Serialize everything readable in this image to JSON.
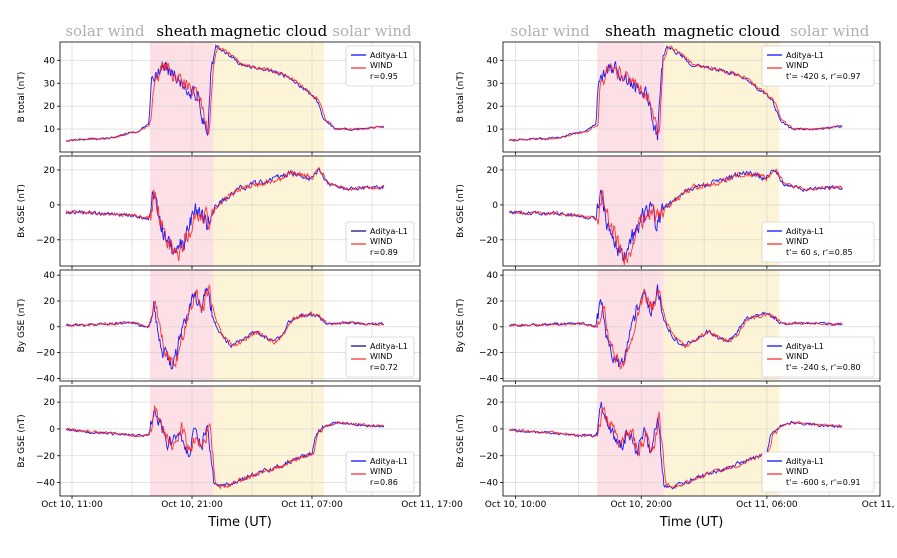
{
  "chart_data": [
    {
      "type": "line",
      "side": "left",
      "regions": [
        {
          "label": "solar wind",
          "color": "#b0b0b0",
          "fill": "none"
        },
        {
          "label": "sheath",
          "color": "#000000",
          "fill": "#fde0e6",
          "x_start": 17.5,
          "x_end": 22.8
        },
        {
          "label": "magnetic cloud",
          "color": "#000000",
          "fill": "#fdf4d8",
          "x_start": 22.8,
          "x_end": 32.0
        },
        {
          "label": "solar wind",
          "color": "#b0b0b0",
          "fill": "none"
        }
      ],
      "x_range": [
        10.0,
        40.0
      ],
      "x_ticks": [
        {
          "v": 11,
          "label": "Oct 10, 11:00"
        },
        {
          "v": 21,
          "label": "Oct 10, 21:00"
        },
        {
          "v": 31,
          "label": "Oct 11, 07:00"
        },
        {
          "v": 41,
          "label": "Oct 11, 17:00"
        }
      ],
      "xlabel": "Time (UT)",
      "panels": [
        {
          "ylabel": "B total (nT)",
          "ylim": [
            0,
            48
          ],
          "yticks": [
            10,
            20,
            30,
            40
          ],
          "key": "bt",
          "legend": {
            "series1": "Aditya-L1",
            "series2": "WIND",
            "stat": "r=0.95",
            "line1_color": "#0000ff"
          }
        },
        {
          "ylabel": "Bx GSE (nT)",
          "ylim": [
            -35,
            28
          ],
          "yticks": [
            -20,
            0,
            20
          ],
          "key": "bx",
          "legend": {
            "series1": "Aditya-L1",
            "series2": "WIND",
            "stat": "r=0.89",
            "line1_color": "#000080"
          }
        },
        {
          "ylabel": "By GSE (nT)",
          "ylim": [
            -42,
            44
          ],
          "yticks": [
            -40,
            -20,
            0,
            20,
            40
          ],
          "key": "by",
          "legend": {
            "series1": "Aditya-L1",
            "series2": "WIND",
            "stat": "r=0.72",
            "line1_color": "#000080"
          }
        },
        {
          "ylabel": "Bz GSE (nT)",
          "ylim": [
            -50,
            32
          ],
          "yticks": [
            -40,
            -20,
            0,
            20
          ],
          "key": "bz",
          "legend": {
            "series1": "Aditya-L1",
            "series2": "WIND",
            "stat": "r=0.86",
            "line1_color": "#0000ff"
          }
        }
      ]
    },
    {
      "type": "line",
      "side": "right",
      "regions": [
        {
          "label": "solar wind",
          "color": "#b0b0b0",
          "fill": "none"
        },
        {
          "label": "sheath",
          "color": "#000000",
          "fill": "#fde0e6",
          "x_start": 16.5,
          "x_end": 21.8
        },
        {
          "label": "magnetic cloud",
          "color": "#000000",
          "fill": "#fdf4d8",
          "x_start": 21.8,
          "x_end": 31.0
        },
        {
          "label": "solar wind",
          "color": "#b0b0b0",
          "fill": "none"
        }
      ],
      "x_range": [
        9.0,
        39.0
      ],
      "x_ticks": [
        {
          "v": 10,
          "label": "Oct 10, 10:00"
        },
        {
          "v": 20,
          "label": "Oct 10, 20:00"
        },
        {
          "v": 30,
          "label": "Oct 11, 06:00"
        },
        {
          "v": 40,
          "label": "Oct 11, 16:00"
        }
      ],
      "xlabel": "Time (UT)",
      "panels": [
        {
          "ylabel": "B total (nT)",
          "ylim": [
            0,
            48
          ],
          "yticks": [
            10,
            20,
            30,
            40
          ],
          "key": "bt",
          "legend": {
            "series1": "Aditya-L1",
            "series2": "WIND",
            "stat": "t'= -420 s, r'=0.97",
            "line1_color": "#0000ff"
          }
        },
        {
          "ylabel": "Bx GSE (nT)",
          "ylim": [
            -35,
            28
          ],
          "yticks": [
            -20,
            0,
            20
          ],
          "key": "bx",
          "legend": {
            "series1": "Aditya-L1",
            "series2": "WIND",
            "stat": "t'= 60 s, r'=0.85",
            "line1_color": "#0000ff"
          }
        },
        {
          "ylabel": "By GSE (nT)",
          "ylim": [
            -42,
            44
          ],
          "yticks": [
            -40,
            -20,
            0,
            20,
            40
          ],
          "key": "by",
          "legend": {
            "series1": "Aditya-L1",
            "series2": "WIND",
            "stat": "t'= -240 s, r'=0.80",
            "line1_color": "#0000ff"
          }
        },
        {
          "ylabel": "Bz GSE (nT)",
          "ylim": [
            -50,
            32
          ],
          "yticks": [
            -40,
            -20,
            0,
            20
          ],
          "key": "bz",
          "legend": {
            "series1": "Aditya-L1",
            "series2": "WIND",
            "stat": "t'= -600 s, r'=0.91",
            "line1_color": "#0000ff"
          }
        }
      ]
    }
  ],
  "profiles": {
    "bt": [
      [
        10.0,
        5
      ],
      [
        14.0,
        6
      ],
      [
        16.5,
        9
      ],
      [
        17.4,
        12
      ],
      [
        17.6,
        30
      ],
      [
        18.5,
        38
      ],
      [
        19.5,
        33
      ],
      [
        20.5,
        28
      ],
      [
        21.5,
        25
      ],
      [
        22.0,
        12
      ],
      [
        22.3,
        8
      ],
      [
        22.6,
        38
      ],
      [
        23.0,
        46
      ],
      [
        24.0,
        43
      ],
      [
        25.0,
        38
      ],
      [
        27.0,
        36
      ],
      [
        28.5,
        34
      ],
      [
        29.5,
        31
      ],
      [
        30.5,
        27
      ],
      [
        31.5,
        22
      ],
      [
        32.0,
        14
      ],
      [
        33.0,
        10
      ],
      [
        35.0,
        10
      ],
      [
        36.5,
        11
      ]
    ],
    "bx": [
      [
        10.0,
        -4
      ],
      [
        14.0,
        -5
      ],
      [
        16.0,
        -6
      ],
      [
        17.4,
        -8
      ],
      [
        17.8,
        8
      ],
      [
        18.3,
        -12
      ],
      [
        19.0,
        -22
      ],
      [
        19.6,
        -30
      ],
      [
        20.3,
        -20
      ],
      [
        21.0,
        -8
      ],
      [
        21.6,
        -3
      ],
      [
        22.3,
        -10
      ],
      [
        22.8,
        -2
      ],
      [
        24.0,
        5
      ],
      [
        25.0,
        10
      ],
      [
        26.5,
        12
      ],
      [
        28.0,
        15
      ],
      [
        29.0,
        18
      ],
      [
        30.0,
        18
      ],
      [
        30.8,
        15
      ],
      [
        31.5,
        20
      ],
      [
        32.3,
        12
      ],
      [
        34.0,
        9
      ],
      [
        36.5,
        10
      ]
    ],
    "by": [
      [
        10.0,
        1
      ],
      [
        14.0,
        2
      ],
      [
        16.0,
        3
      ],
      [
        17.4,
        0
      ],
      [
        17.8,
        20
      ],
      [
        18.3,
        -10
      ],
      [
        18.9,
        -25
      ],
      [
        19.4,
        -32
      ],
      [
        20.0,
        -10
      ],
      [
        20.6,
        12
      ],
      [
        21.2,
        25
      ],
      [
        21.8,
        15
      ],
      [
        22.3,
        30
      ],
      [
        22.8,
        5
      ],
      [
        23.5,
        -8
      ],
      [
        24.3,
        -15
      ],
      [
        25.2,
        -10
      ],
      [
        26.2,
        -4
      ],
      [
        27.0,
        -8
      ],
      [
        27.8,
        -12
      ],
      [
        28.5,
        -6
      ],
      [
        29.2,
        5
      ],
      [
        30.0,
        8
      ],
      [
        30.8,
        10
      ],
      [
        31.5,
        8
      ],
      [
        32.2,
        2
      ],
      [
        34.0,
        3
      ],
      [
        36.5,
        2
      ]
    ],
    "bz": [
      [
        10.0,
        0
      ],
      [
        12.0,
        -2
      ],
      [
        14.0,
        -3
      ],
      [
        16.0,
        -5
      ],
      [
        17.4,
        -5
      ],
      [
        17.8,
        15
      ],
      [
        18.3,
        5
      ],
      [
        18.9,
        -8
      ],
      [
        19.4,
        -12
      ],
      [
        20.0,
        0
      ],
      [
        20.6,
        -18
      ],
      [
        21.2,
        -5
      ],
      [
        21.8,
        -15
      ],
      [
        22.3,
        8
      ],
      [
        22.8,
        -42
      ],
      [
        23.5,
        -43
      ],
      [
        24.5,
        -40
      ],
      [
        25.5,
        -36
      ],
      [
        26.5,
        -33
      ],
      [
        27.5,
        -30
      ],
      [
        28.5,
        -27
      ],
      [
        29.5,
        -23
      ],
      [
        30.5,
        -20
      ],
      [
        31.0,
        -18
      ],
      [
        31.3,
        -5
      ],
      [
        32.0,
        2
      ],
      [
        33.0,
        5
      ],
      [
        35.0,
        3
      ],
      [
        36.5,
        2
      ]
    ]
  }
}
